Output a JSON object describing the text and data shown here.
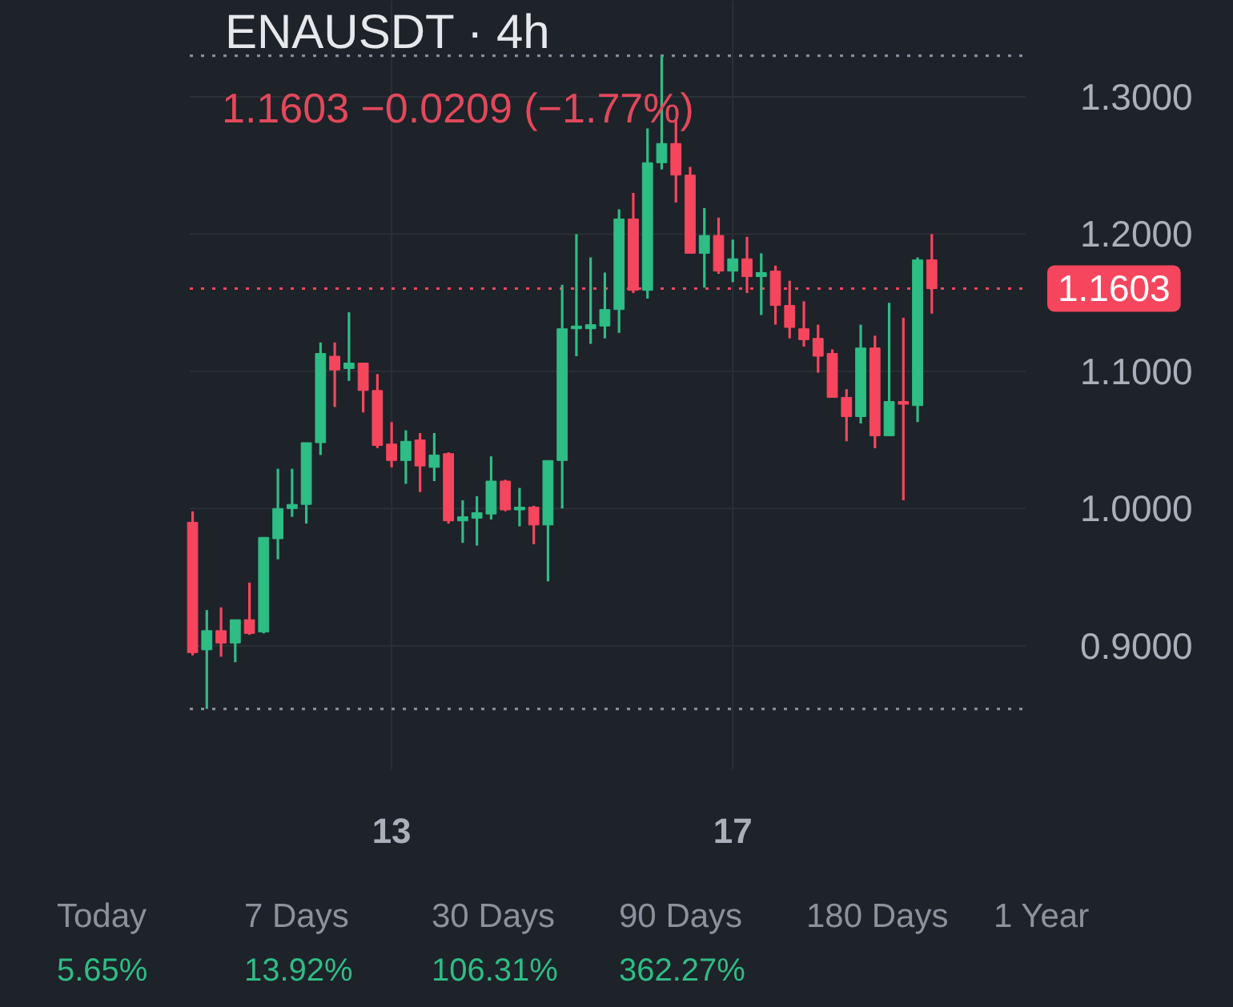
{
  "chart_data": [
    {
      "type": "candlestick",
      "title": "ENAUSDT · 4h",
      "subtitle": "1.1603  −0.0209 (−1.77%)",
      "categories": [
        null,
        null,
        null,
        null,
        null,
        null,
        null,
        null,
        null,
        null,
        null,
        null,
        null,
        null,
        "13",
        null,
        null,
        null,
        null,
        null,
        null,
        null,
        null,
        null,
        null,
        null,
        null,
        null,
        null,
        null,
        null,
        null,
        null,
        null,
        null,
        null,
        null,
        null,
        "17",
        null,
        null,
        null,
        null,
        null,
        null,
        null,
        null,
        null,
        null,
        null,
        null,
        null,
        null
      ],
      "ohlc": [
        [
          0.99,
          0.998,
          0.893,
          0.895
        ],
        [
          0.897,
          0.926,
          0.854,
          0.911
        ],
        [
          0.911,
          0.928,
          0.892,
          0.902
        ],
        [
          0.902,
          0.919,
          0.888,
          0.919
        ],
        [
          0.919,
          0.946,
          0.908,
          0.909
        ],
        [
          0.91,
          0.979,
          0.909,
          0.979
        ],
        [
          0.978,
          1.029,
          0.963,
          1.0
        ],
        [
          1.0,
          1.029,
          0.994,
          1.003
        ],
        [
          1.003,
          1.048,
          0.989,
          1.048
        ],
        [
          1.048,
          1.121,
          1.039,
          1.113
        ],
        [
          1.111,
          1.121,
          1.074,
          1.101
        ],
        [
          1.102,
          1.143,
          1.093,
          1.106
        ],
        [
          1.106,
          1.106,
          1.07,
          1.086
        ],
        [
          1.086,
          1.098,
          1.044,
          1.046
        ],
        [
          1.047,
          1.063,
          1.03,
          1.035
        ],
        [
          1.035,
          1.057,
          1.018,
          1.049
        ],
        [
          1.05,
          1.055,
          1.012,
          1.031
        ],
        [
          1.03,
          1.055,
          1.02,
          1.039
        ],
        [
          1.04,
          1.041,
          0.989,
          0.991
        ],
        [
          0.991,
          1.006,
          0.975,
          0.994
        ],
        [
          0.993,
          1.009,
          0.973,
          0.997
        ],
        [
          0.996,
          1.038,
          0.992,
          1.02
        ],
        [
          1.02,
          1.021,
          0.998,
          0.999
        ],
        [
          0.999,
          1.015,
          0.987,
          1.001
        ],
        [
          1.001,
          1.002,
          0.974,
          0.988
        ],
        [
          0.988,
          1.035,
          0.947,
          1.035
        ],
        [
          1.035,
          1.163,
          1.0,
          1.131
        ],
        [
          1.131,
          1.2,
          1.111,
          1.133
        ],
        [
          1.131,
          1.183,
          1.12,
          1.134
        ],
        [
          1.133,
          1.172,
          1.124,
          1.145
        ],
        [
          1.145,
          1.218,
          1.128,
          1.211
        ],
        [
          1.211,
          1.23,
          1.157,
          1.159
        ],
        [
          1.159,
          1.277,
          1.153,
          1.252
        ],
        [
          1.252,
          1.33,
          1.247,
          1.266
        ],
        [
          1.266,
          1.284,
          1.223,
          1.243
        ],
        [
          1.243,
          1.249,
          1.186,
          1.186
        ],
        [
          1.186,
          1.219,
          1.161,
          1.199
        ],
        [
          1.199,
          1.212,
          1.171,
          1.173
        ],
        [
          1.173,
          1.196,
          1.165,
          1.182
        ],
        [
          1.182,
          1.198,
          1.157,
          1.169
        ],
        [
          1.169,
          1.186,
          1.141,
          1.172
        ],
        [
          1.173,
          1.177,
          1.134,
          1.148
        ],
        [
          1.148,
          1.166,
          1.124,
          1.132
        ],
        [
          1.131,
          1.151,
          1.118,
          1.123
        ],
        [
          1.124,
          1.134,
          1.099,
          1.111
        ],
        [
          1.113,
          1.116,
          1.081,
          1.081
        ],
        [
          1.081,
          1.087,
          1.049,
          1.067
        ],
        [
          1.067,
          1.134,
          1.062,
          1.117
        ],
        [
          1.117,
          1.126,
          1.044,
          1.053
        ],
        [
          1.053,
          1.15,
          1.053,
          1.078
        ],
        [
          1.078,
          1.139,
          1.006,
          1.076
        ],
        [
          1.075,
          1.183,
          1.063,
          1.1812
        ],
        [
          1.1812,
          1.2,
          1.142,
          1.1603
        ]
      ],
      "colors": [
        "#f6465d",
        "#2ebd85",
        "#f6465d",
        "#2ebd85",
        "#f6465d",
        "#2ebd85",
        "#2ebd85",
        "#2ebd85",
        "#2ebd85",
        "#2ebd85",
        "#f6465d",
        "#2ebd85",
        "#f6465d",
        "#f6465d",
        "#f6465d",
        "#2ebd85",
        "#f6465d",
        "#2ebd85",
        "#f6465d",
        "#2ebd85",
        "#2ebd85",
        "#2ebd85",
        "#f6465d",
        "#2ebd85",
        "#f6465d",
        "#2ebd85",
        "#2ebd85",
        "#2ebd85",
        "#2ebd85",
        "#2ebd85",
        "#2ebd85",
        "#f6465d",
        "#2ebd85",
        "#2ebd85",
        "#f6465d",
        "#f6465d",
        "#2ebd85",
        "#f6465d",
        "#2ebd85",
        "#f6465d",
        "#2ebd85",
        "#f6465d",
        "#f6465d",
        "#f6465d",
        "#f6465d",
        "#f6465d",
        "#f6465d",
        "#2ebd85",
        "#f6465d",
        "#2ebd85",
        "#f6465d",
        "#2ebd85",
        "#f6465d"
      ],
      "ylim": [
        0.81,
        1.37
      ],
      "yticks": [
        {
          "value": 0.9,
          "label": "0.9000"
        },
        {
          "value": 1.0,
          "label": "1.0000"
        },
        {
          "value": 1.1,
          "label": "1.1000"
        },
        {
          "value": 1.2,
          "label": "1.2000"
        },
        {
          "value": 1.3,
          "label": "1.3000"
        }
      ],
      "grid": true,
      "ref_lines": [
        {
          "axis": "y",
          "value": 1.1603,
          "label": "1.1603",
          "color": "#f6465d",
          "line_style": "dotted"
        },
        {
          "axis": "y",
          "value": 1.33,
          "color": "#848e9c",
          "line_style": "dotted"
        },
        {
          "axis": "y",
          "value": 0.854,
          "color": "#848e9c",
          "line_style": "dotted"
        }
      ]
    },
    {
      "type": "other",
      "categories": [
        "Today",
        "7 Days",
        "30 Days",
        "90 Days",
        "180 Days",
        "1 Year"
      ],
      "value_labels": [
        "5.65%",
        "13.92%",
        "106.31%",
        "362.27%",
        null,
        null
      ],
      "color": "#2ebd85"
    }
  ]
}
